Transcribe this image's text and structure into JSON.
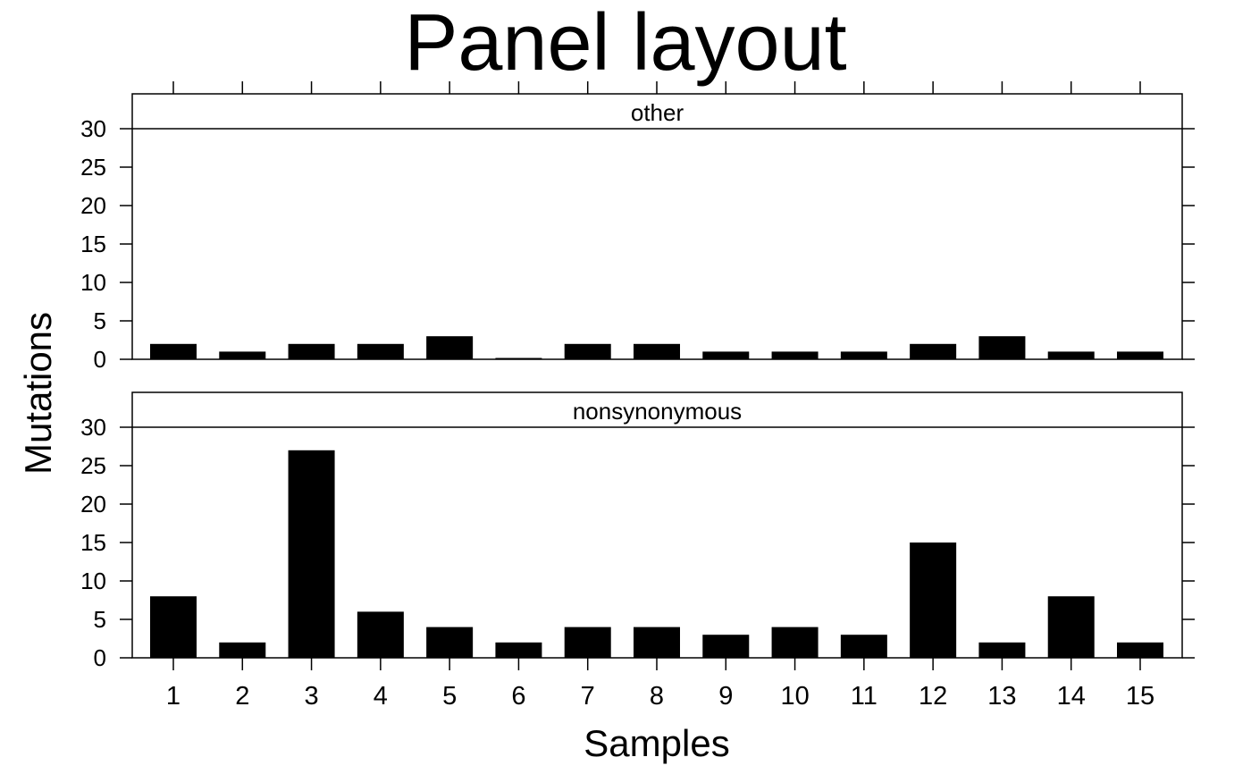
{
  "chart_data": {
    "type": "bar",
    "title": "Panel layout",
    "xlabel": "Samples",
    "ylabel": "Mutations",
    "categories": [
      "1",
      "2",
      "3",
      "4",
      "5",
      "6",
      "7",
      "8",
      "9",
      "10",
      "11",
      "12",
      "13",
      "14",
      "15"
    ],
    "yticks": [
      0,
      5,
      10,
      15,
      20,
      25,
      30
    ],
    "ylim": [
      0,
      30
    ],
    "bar_color": "#000000",
    "grid": false,
    "panels": [
      {
        "name": "other",
        "values": [
          2,
          1,
          2,
          2,
          3,
          0,
          2,
          2,
          1,
          1,
          1,
          2,
          3,
          1,
          1
        ]
      },
      {
        "name": "nonsynonymous",
        "values": [
          8,
          2,
          27,
          6,
          4,
          2,
          4,
          4,
          3,
          4,
          3,
          15,
          2,
          8,
          2
        ]
      }
    ]
  }
}
